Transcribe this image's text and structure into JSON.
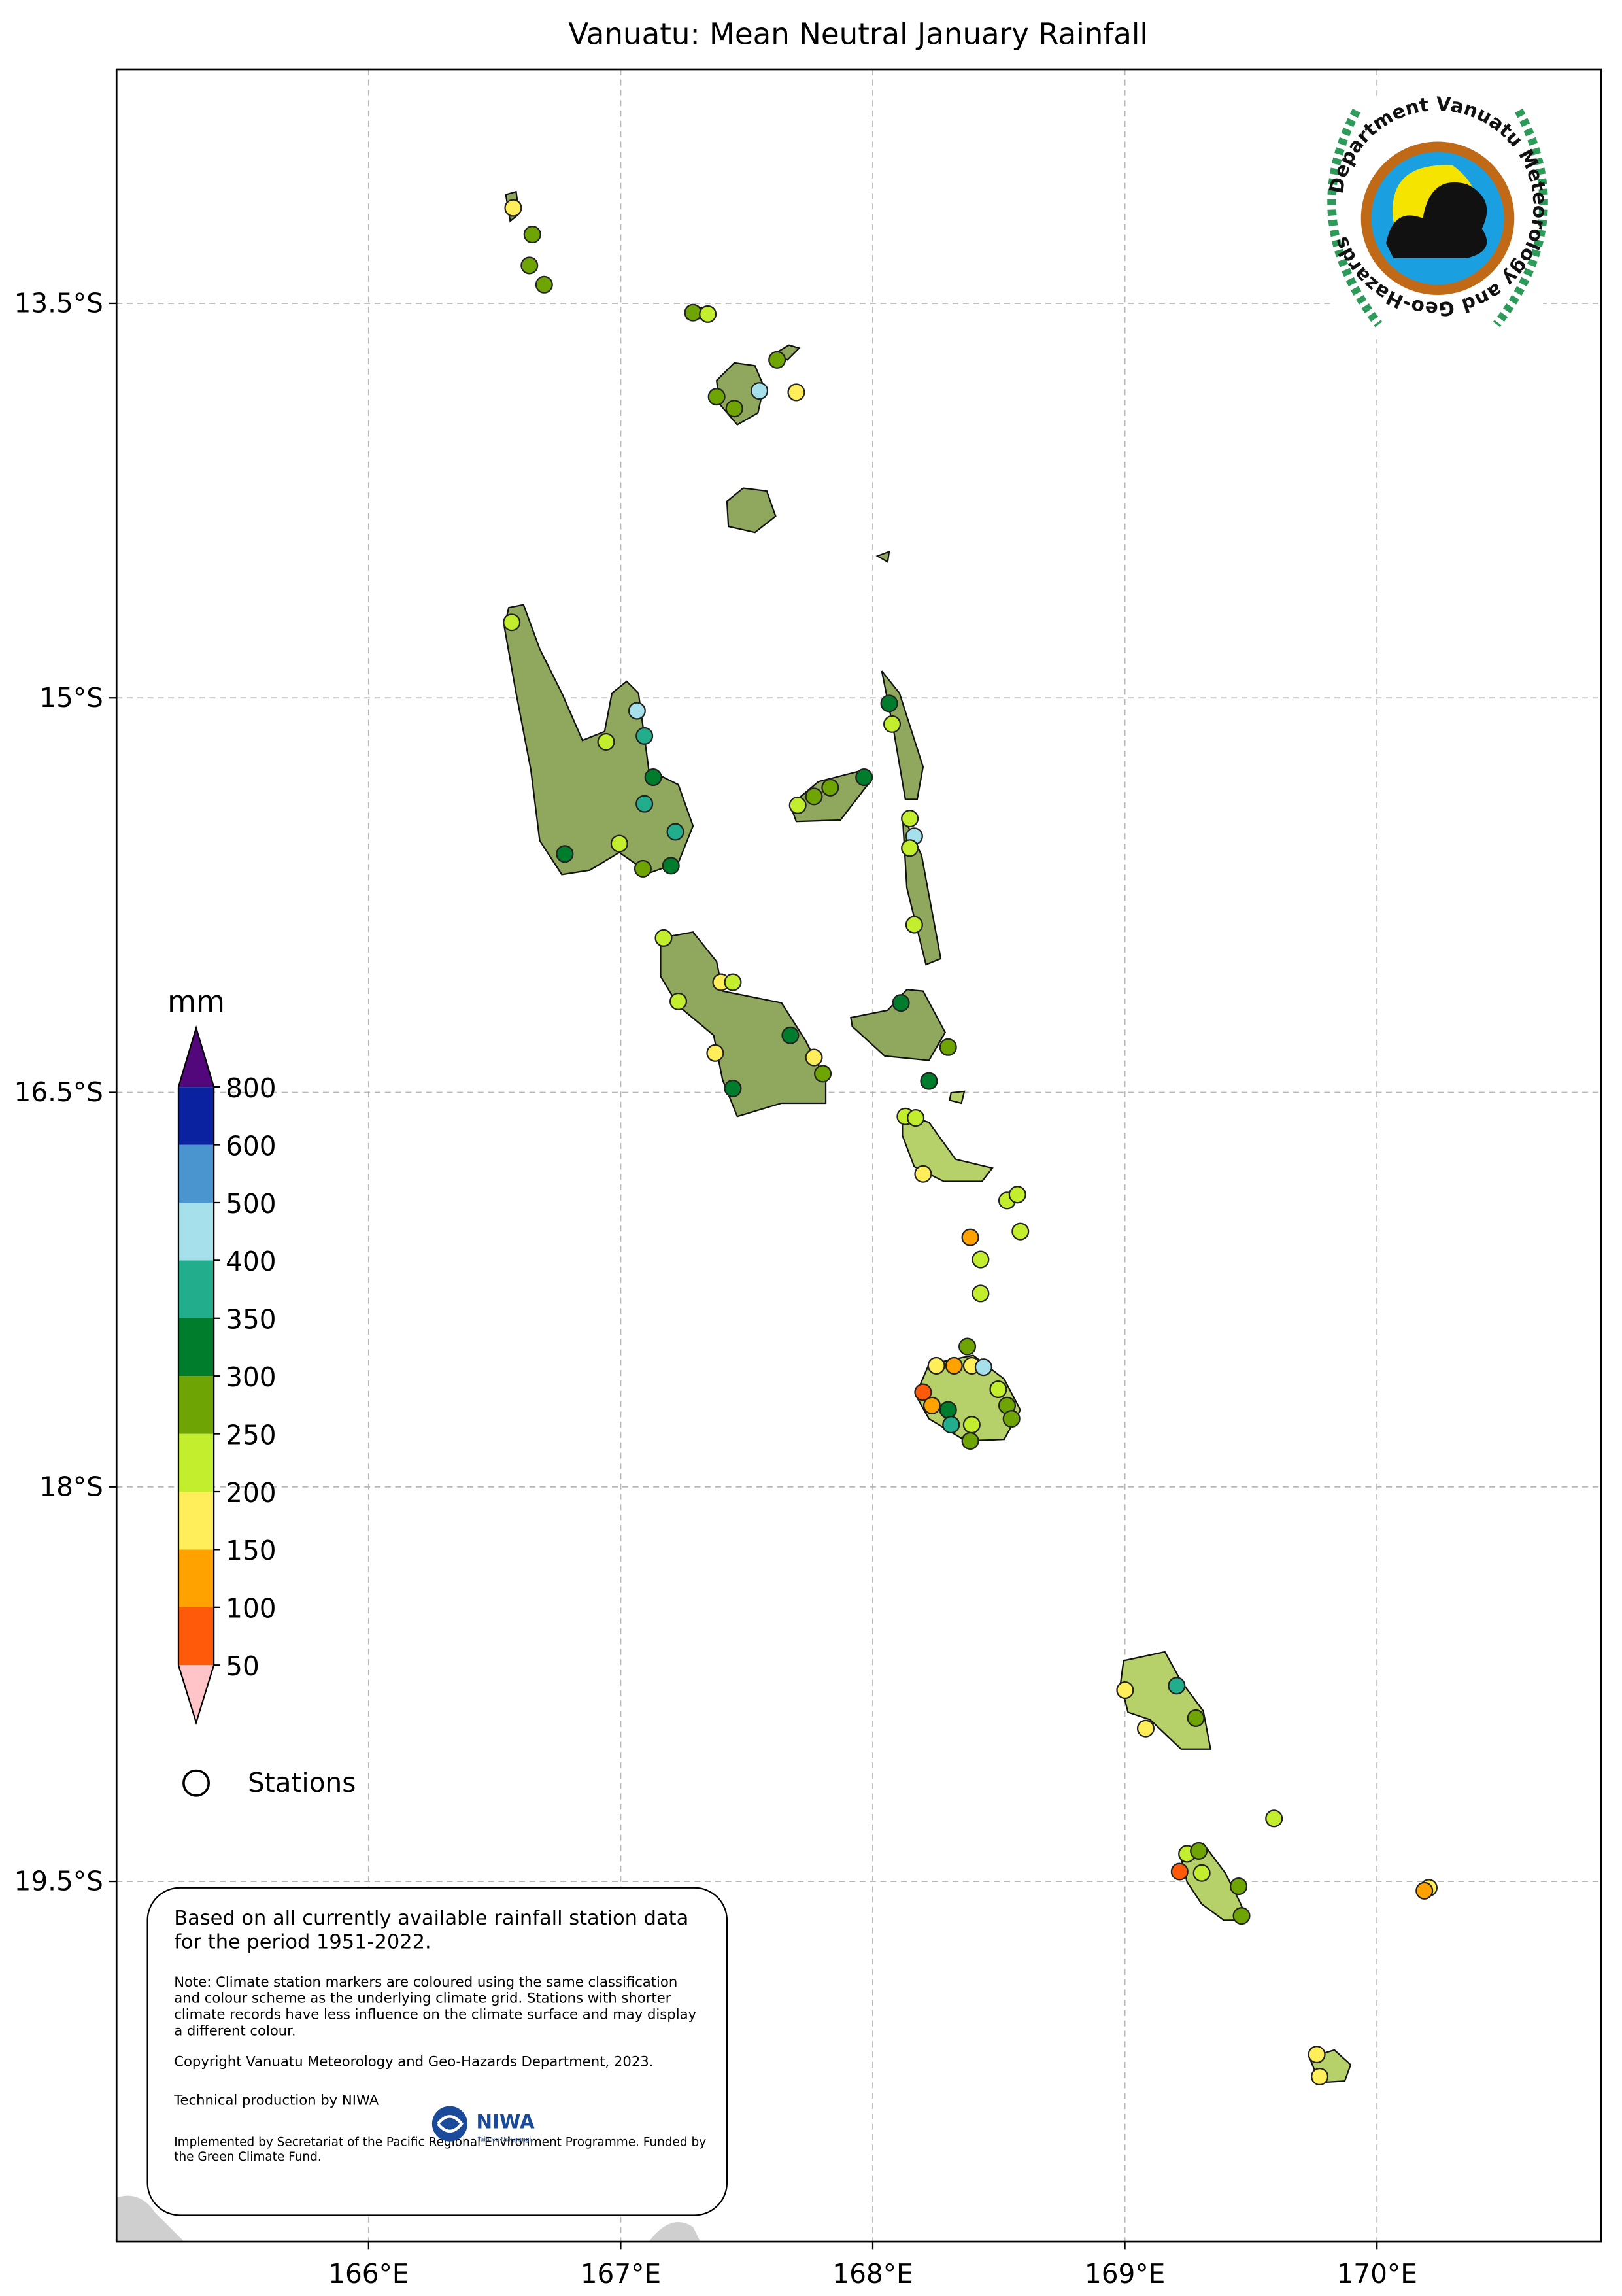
{
  "map": {
    "title": "Vanuatu: Mean Neutral January Rainfall",
    "xlim": [
      165.0,
      170.89
    ],
    "ylim": [
      -20.87,
      -12.61
    ],
    "xticks": [
      {
        "value": 166,
        "label": "166°E"
      },
      {
        "value": 167,
        "label": "167°E"
      },
      {
        "value": 168,
        "label": "168°E"
      },
      {
        "value": 169,
        "label": "169°E"
      },
      {
        "value": 170,
        "label": "170°E"
      }
    ],
    "yticks": [
      {
        "value": -13.5,
        "label": "13.5°S"
      },
      {
        "value": -15,
        "label": "15°S"
      },
      {
        "value": -16.5,
        "label": "16.5°S"
      },
      {
        "value": -18,
        "label": "18°S"
      },
      {
        "value": -19.5,
        "label": "19.5°S"
      }
    ],
    "grid": true
  },
  "legend": {
    "unit": "mm",
    "bounds": [
      50,
      100,
      150,
      200,
      250,
      300,
      350,
      400,
      500,
      600,
      800
    ],
    "colors": [
      "#ffc4c8",
      "#ff5a0a",
      "#ffa200",
      "#ffee5a",
      "#c2ee2e",
      "#6ea404",
      "#007d2c",
      "#22ae8c",
      "#a6e0ea",
      "#4a94d0",
      "#0a22a0",
      "#52087a"
    ],
    "stations_label": "Stations"
  },
  "logo": {
    "text": "Department Vanuatu Meteorology and Geo-Hazards"
  },
  "notes": {
    "main": "Based on all currently available rainfall station data for the period 1951-2022.",
    "note": "Note: Climate station markers are coloured using the same classification and colour scheme as the underlying climate grid. Stations with shorter climate records have less influence on the climate surface and may display a different colour.",
    "copyright": "Copyright Vanuatu Meteorology and Geo-Hazards Department, 2023.",
    "technical": "Technical production by NIWA",
    "niwa": "NIWA",
    "niwa_sub": "Taihoro Nukurangi",
    "implemented": "Implemented by Secretariat of the Pacific Regional Environment Programme. Funded by the Green Climate Fund."
  }
}
